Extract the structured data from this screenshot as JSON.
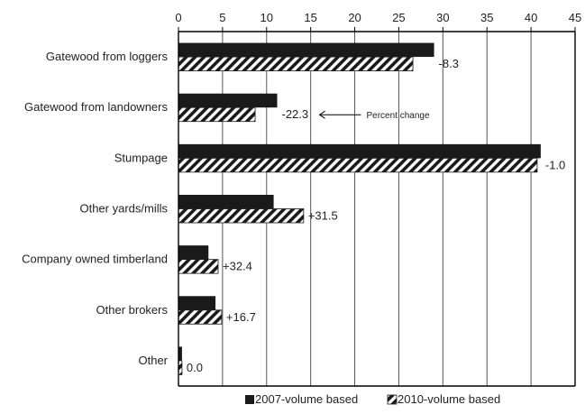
{
  "chart_data": {
    "type": "bar",
    "orientation": "horizontal",
    "x_axis_position": "top",
    "xlim": [
      0,
      45
    ],
    "x_ticks": [
      "0",
      "5",
      "10",
      "15",
      "20",
      "25",
      "30",
      "35",
      "40",
      "45"
    ],
    "grid": "vertical",
    "categories": [
      "Gatewood from loggers",
      "Gatewood from landowners",
      "Stumpage",
      "Other yards/mills",
      "Company owned timberland",
      "Other brokers",
      "Other"
    ],
    "series": [
      {
        "name": "2007-volume based",
        "values": [
          29,
          11.2,
          41.1,
          10.8,
          3.4,
          4.2,
          0.4
        ],
        "fill": "#1a1a1a"
      },
      {
        "name": "2010-volume based",
        "values": [
          26.6,
          8.7,
          40.7,
          14.2,
          4.5,
          4.9,
          0.4
        ],
        "fill": "hatch"
      }
    ],
    "data_labels": [
      "-8.3",
      "-22.3",
      "-1.0",
      "+31.5",
      "+32.4",
      "+16.7",
      "0.0"
    ],
    "annotation": {
      "text": "Percent change"
    },
    "legend_position": "bottom"
  },
  "colors": {
    "bar_2007": "#1a1a1a",
    "hatch_stroke": "#1a1a1a",
    "axis": "#000000",
    "grid": "#555555"
  }
}
